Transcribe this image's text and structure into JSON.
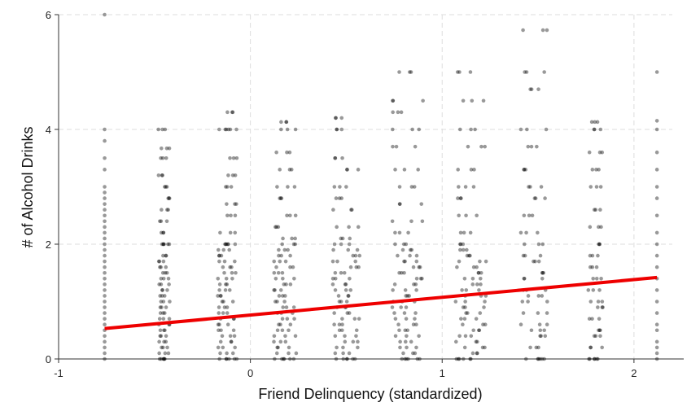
{
  "chart_data": {
    "type": "scatter",
    "title": "",
    "xlabel": "Friend Delinquency (standardized)",
    "ylabel": "# of Alcohol Drinks",
    "xlim": [
      -1,
      2.2
    ],
    "ylim": [
      0,
      6
    ],
    "x_ticks": [
      -1,
      0,
      1,
      2
    ],
    "x_tick_labels": [
      "-1",
      "0",
      "1",
      "2"
    ],
    "y_ticks": [
      0,
      2,
      4,
      6
    ],
    "y_tick_labels": [
      "0",
      "2",
      "4",
      "6"
    ],
    "grid": true,
    "legend": "none",
    "point_color": "#000000",
    "point_opacity": 0.4,
    "point_columns": [
      {
        "x": -0.76,
        "jitter": 0.0,
        "y_values": [
          0,
          0.1,
          0.2,
          0.3,
          0.4,
          0.5,
          0.6,
          0.7,
          0.8,
          0.9,
          1,
          1.1,
          1.2,
          1.3,
          1.4,
          1.5,
          1.6,
          1.7,
          1.8,
          1.9,
          2,
          2.1,
          2.2,
          2.3,
          2.4,
          2.5,
          2.6,
          2.7,
          2.8,
          2.9,
          3,
          3.3,
          3.5,
          3.8,
          4,
          6
        ]
      },
      {
        "x": -0.45,
        "jitter": 0.03,
        "y_values": [
          0,
          0,
          0.1,
          0.2,
          0.3,
          0.4,
          0.5,
          0.6,
          0.7,
          0.8,
          0.9,
          1,
          1.1,
          1.2,
          1.3,
          1.4,
          1.5,
          1.6,
          1.7,
          1.8,
          2,
          2,
          2.2,
          2.4,
          2.6,
          2.8,
          3,
          3.2,
          3.5,
          3.67,
          4
        ]
      },
      {
        "x": -0.12,
        "jitter": 0.05,
        "y_values": [
          0,
          0,
          0.1,
          0.2,
          0.3,
          0.4,
          0.5,
          0.6,
          0.7,
          0.8,
          0.9,
          1,
          1.1,
          1.2,
          1.3,
          1.4,
          1.5,
          1.6,
          1.7,
          1.8,
          1.9,
          2,
          2,
          2.2,
          2.5,
          2.7,
          3,
          3.2,
          3.5,
          4,
          4,
          4.3
        ]
      },
      {
        "x": 0.18,
        "jitter": 0.06,
        "y_values": [
          0,
          0,
          0.1,
          0.2,
          0.3,
          0.4,
          0.5,
          0.6,
          0.7,
          0.8,
          0.9,
          1,
          1.1,
          1.2,
          1.3,
          1.4,
          1.5,
          1.6,
          1.7,
          1.8,
          1.9,
          2,
          2.1,
          2.3,
          2.5,
          2.8,
          3,
          3.3,
          3.6,
          4,
          4.13
        ]
      },
      {
        "x": 0.5,
        "jitter": 0.07,
        "y_values": [
          0,
          0,
          0.1,
          0.2,
          0.3,
          0.4,
          0.5,
          0.6,
          0.7,
          0.8,
          0.9,
          1,
          1.1,
          1.2,
          1.3,
          1.4,
          1.5,
          1.6,
          1.7,
          1.8,
          1.9,
          2,
          2.1,
          2.3,
          2.6,
          2.8,
          3,
          3.3,
          3.5,
          4,
          4.2
        ]
      },
      {
        "x": 0.82,
        "jitter": 0.08,
        "y_values": [
          0,
          0,
          0.1,
          0.2,
          0.3,
          0.4,
          0.5,
          0.6,
          0.7,
          0.8,
          0.9,
          1,
          1.1,
          1.2,
          1.3,
          1.4,
          1.5,
          1.6,
          1.7,
          1.8,
          1.9,
          2,
          2.2,
          2.4,
          2.7,
          3,
          3.3,
          3.7,
          4,
          4.3,
          4.5,
          5
        ]
      },
      {
        "x": 1.15,
        "jitter": 0.08,
        "y_values": [
          0,
          0,
          0.1,
          0.2,
          0.3,
          0.4,
          0.5,
          0.6,
          0.7,
          0.8,
          0.9,
          1,
          1.1,
          1.2,
          1.3,
          1.4,
          1.5,
          1.6,
          1.7,
          1.8,
          1.9,
          2,
          2.2,
          2.5,
          2.8,
          3,
          3.3,
          3.7,
          4,
          4.5,
          5
        ]
      },
      {
        "x": 1.48,
        "jitter": 0.07,
        "y_values": [
          0,
          0,
          0.2,
          0.4,
          0.5,
          0.6,
          0.8,
          1,
          1.1,
          1.2,
          1.4,
          1.5,
          1.7,
          1.8,
          2,
          2.2,
          2.5,
          2.8,
          3,
          3.3,
          3.7,
          4,
          4.7,
          5,
          5.73
        ]
      },
      {
        "x": 1.8,
        "jitter": 0.04,
        "y_values": [
          0,
          0,
          0.2,
          0.4,
          0.5,
          0.7,
          0.9,
          1,
          1.2,
          1.4,
          1.6,
          1.8,
          2,
          2.3,
          2.6,
          3,
          3.3,
          3.6,
          4,
          4.13
        ]
      },
      {
        "x": 2.12,
        "jitter": 0.0,
        "y_values": [
          0,
          0.1,
          0.2,
          0.3,
          0.5,
          0.6,
          0.8,
          1,
          1.2,
          1.4,
          1.6,
          1.8,
          2,
          2.2,
          2.5,
          2.8,
          3,
          3.3,
          3.6,
          4,
          4.15,
          5
        ]
      }
    ],
    "fit_line": {
      "x": [
        -0.76,
        2.12
      ],
      "y": [
        0.53,
        1.42
      ],
      "color": "#ee0000"
    }
  }
}
